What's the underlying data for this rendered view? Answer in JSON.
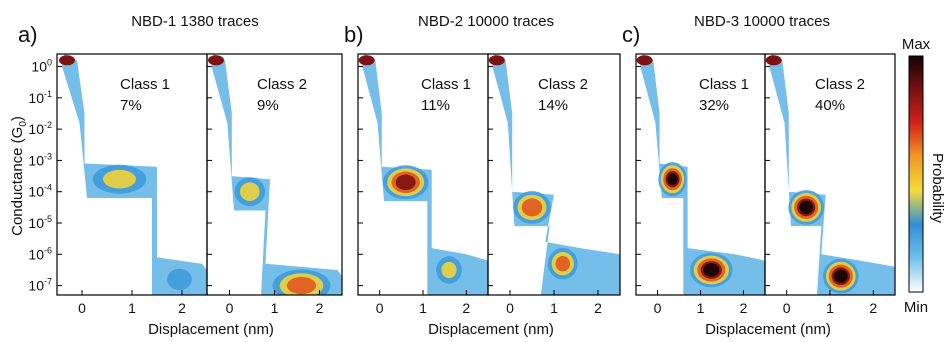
{
  "colors": {
    "scale": [
      "#ffffff",
      "#6fc0ec",
      "#2f8fd6",
      "#f2dc3c",
      "#f29a26",
      "#d2231a",
      "#7a1010",
      "#120404"
    ],
    "axis": "#000000"
  },
  "colorbar": {
    "max_label": "Max",
    "min_label": "Min",
    "title": "Probability"
  },
  "shared": {
    "ylabel": "Conductance (G0)",
    "ylabel_main": "Conductance (G",
    "ylabel_sub": "0",
    "ylabel_close": ")"
  },
  "chart_data": [
    {
      "type": "heatmap",
      "panel_letter": "a)",
      "title": "NBD-1 1380 traces",
      "xlabel": "Displacement (nm)",
      "xlim": [
        -0.5,
        2.5
      ],
      "ylim_log10": [
        -7.3,
        0.4
      ],
      "x_ticks": [
        "0",
        "1",
        "2"
      ],
      "y_ticks": [
        "10^0",
        "10^-1",
        "10^-2",
        "10^-3",
        "10^-4",
        "10^-5",
        "10^-6",
        "10^-7"
      ],
      "classes": [
        {
          "name": "Class 1",
          "percent": "7%",
          "plateaus": [
            {
              "x_range": [
                0.0,
                1.5
              ],
              "log10_G": -3.6,
              "intensity": 0.55
            },
            {
              "x_range": [
                1.5,
                2.4
              ],
              "log10_G": -6.8,
              "intensity": 0.35
            }
          ]
        },
        {
          "name": "Class 2",
          "percent": "9%",
          "plateaus": [
            {
              "x_range": [
                0.0,
                0.9
              ],
              "log10_G": -4.0,
              "intensity": 0.55
            },
            {
              "x_range": [
                0.8,
                2.4
              ],
              "log10_G": -7.0,
              "intensity": 0.75
            }
          ]
        }
      ]
    },
    {
      "type": "heatmap",
      "panel_letter": "b)",
      "title": "NBD-2 10000 traces",
      "xlabel": "Displacement (nm)",
      "xlim": [
        -0.5,
        2.5
      ],
      "ylim_log10": [
        -7.3,
        0.4
      ],
      "x_ticks": [
        "0",
        "1",
        "2"
      ],
      "y_ticks": [
        "10^0",
        "10^-1",
        "10^-2",
        "10^-3",
        "10^-4",
        "10^-5",
        "10^-6",
        "10^-7"
      ],
      "classes": [
        {
          "name": "Class 1",
          "percent": "11%",
          "plateaus": [
            {
              "x_range": [
                0.0,
                1.2
              ],
              "log10_G": -3.7,
              "intensity": 0.92
            },
            {
              "x_range": [
                1.2,
                2.0
              ],
              "log10_G": -6.5,
              "intensity": 0.5
            }
          ]
        },
        {
          "name": "Class 2",
          "percent": "14%",
          "plateaus": [
            {
              "x_range": [
                0.0,
                1.0
              ],
              "log10_G": -4.5,
              "intensity": 0.78
            },
            {
              "x_range": [
                0.8,
                1.6
              ],
              "log10_G": -6.3,
              "intensity": 0.7
            }
          ]
        }
      ]
    },
    {
      "type": "heatmap",
      "panel_letter": "c)",
      "title": "NBD-3 10000 traces",
      "xlabel": "Displacement (nm)",
      "xlim": [
        -0.5,
        2.5
      ],
      "ylim_log10": [
        -7.3,
        0.4
      ],
      "x_ticks": [
        "0",
        "1",
        "2"
      ],
      "y_ticks": [
        "10^0",
        "10^-1",
        "10^-2",
        "10^-3",
        "10^-4",
        "10^-5",
        "10^-6",
        "10^-7"
      ],
      "classes": [
        {
          "name": "Class 1",
          "percent": "32%",
          "plateaus": [
            {
              "x_range": [
                0.0,
                0.7
              ],
              "log10_G": -3.6,
              "intensity": 0.95
            },
            {
              "x_range": [
                0.7,
                1.8
              ],
              "log10_G": -6.5,
              "intensity": 1.0
            }
          ]
        },
        {
          "name": "Class 2",
          "percent": "40%",
          "plateaus": [
            {
              "x_range": [
                0.0,
                0.9
              ],
              "log10_G": -4.5,
              "intensity": 1.0
            },
            {
              "x_range": [
                0.8,
                1.7
              ],
              "log10_G": -6.7,
              "intensity": 1.0
            }
          ]
        }
      ]
    }
  ]
}
